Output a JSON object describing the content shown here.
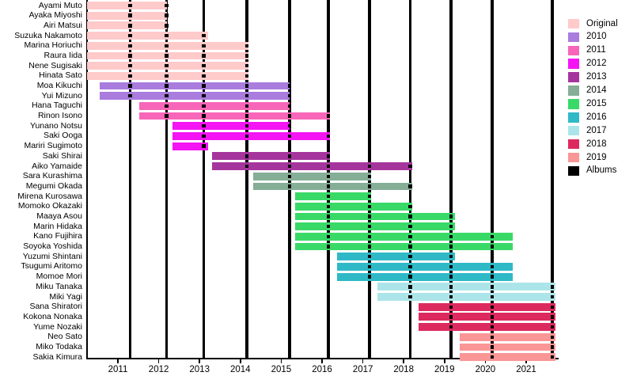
{
  "chart_data": {
    "type": "bar",
    "subtype": "gantt-timeline",
    "grid": false,
    "x_axis": {
      "min": 2010.25,
      "max": 2021.78,
      "tick_values": [
        2011,
        2012,
        2013,
        2014,
        2015,
        2016,
        2017,
        2018,
        2019,
        2020,
        2021
      ],
      "tick_labels": [
        "2011",
        "2012",
        "2013",
        "2014",
        "2015",
        "2016",
        "2017",
        "2018",
        "2019",
        "2020",
        "2021"
      ]
    },
    "legend": {
      "position": "right",
      "entries": [
        {
          "label": "Original",
          "color": "#FFCACA"
        },
        {
          "label": "2010",
          "color": "#A97CDE"
        },
        {
          "label": "2011",
          "color": "#F766B8"
        },
        {
          "label": "2012",
          "color": "#F414F4"
        },
        {
          "label": "2013",
          "color": "#A5359D"
        },
        {
          "label": "2014",
          "color": "#84AE96"
        },
        {
          "label": "2015",
          "color": "#39D967"
        },
        {
          "label": "2016",
          "color": "#2FB9C7"
        },
        {
          "label": "2017",
          "color": "#ACE5E9"
        },
        {
          "label": "2018",
          "color": "#DC2A5F"
        },
        {
          "label": "2019",
          "color": "#FA9696"
        },
        {
          "label": "Albums",
          "color": "#000000"
        }
      ]
    },
    "album_dates": [
      2011.3,
      2012.19,
      2013.1,
      2014.16,
      2015.2,
      2016.15,
      2017.16,
      2018.16,
      2019.16,
      2020.17,
      2021.64
    ],
    "members": [
      {
        "name": "Ayami Muto",
        "generation": "Original",
        "start": 2010.25,
        "end": 2012.2
      },
      {
        "name": "Ayaka Miyoshi",
        "generation": "Original",
        "start": 2010.25,
        "end": 2012.2
      },
      {
        "name": "Airi Matsui",
        "generation": "Original",
        "start": 2010.25,
        "end": 2012.2
      },
      {
        "name": "Suzuka Nakamoto",
        "generation": "Original",
        "start": 2010.25,
        "end": 2013.2
      },
      {
        "name": "Marina Horiuchi",
        "generation": "Original",
        "start": 2010.25,
        "end": 2014.2
      },
      {
        "name": "Raura Iida",
        "generation": "Original",
        "start": 2010.25,
        "end": 2014.2
      },
      {
        "name": "Nene Sugisaki",
        "generation": "Original",
        "start": 2010.25,
        "end": 2014.2
      },
      {
        "name": "Hinata Sato",
        "generation": "Original",
        "start": 2010.25,
        "end": 2014.2
      },
      {
        "name": "Moa Kikuchi",
        "generation": "2010",
        "start": 2010.55,
        "end": 2015.2
      },
      {
        "name": "Yui Mizuno",
        "generation": "2010",
        "start": 2010.55,
        "end": 2015.2
      },
      {
        "name": "Hana Taguchi",
        "generation": "2011",
        "start": 2011.53,
        "end": 2015.2
      },
      {
        "name": "Rinon Isono",
        "generation": "2011",
        "start": 2011.53,
        "end": 2016.2
      },
      {
        "name": "Yunano Notsu",
        "generation": "2012",
        "start": 2012.33,
        "end": 2015.2
      },
      {
        "name": "Saki Ooga",
        "generation": "2012",
        "start": 2012.33,
        "end": 2016.2
      },
      {
        "name": "Mariri Sugimoto",
        "generation": "2012",
        "start": 2012.33,
        "end": 2013.2
      },
      {
        "name": "Saki Shirai",
        "generation": "2013",
        "start": 2013.31,
        "end": 2016.2
      },
      {
        "name": "Aiko Yamaide",
        "generation": "2013",
        "start": 2013.31,
        "end": 2018.2
      },
      {
        "name": "Sara Kurashima",
        "generation": "2014",
        "start": 2014.31,
        "end": 2017.2
      },
      {
        "name": "Megumi Okada",
        "generation": "2014",
        "start": 2014.31,
        "end": 2018.2
      },
      {
        "name": "Mirena Kurosawa",
        "generation": "2015",
        "start": 2015.35,
        "end": 2017.2
      },
      {
        "name": "Momoko Okazaki",
        "generation": "2015",
        "start": 2015.35,
        "end": 2018.2
      },
      {
        "name": "Maaya Asou",
        "generation": "2015",
        "start": 2015.35,
        "end": 2019.25
      },
      {
        "name": "Marin Hidaka",
        "generation": "2015",
        "start": 2015.35,
        "end": 2019.25
      },
      {
        "name": "Kano Fujihira",
        "generation": "2015",
        "start": 2015.35,
        "end": 2020.67
      },
      {
        "name": "Soyoka Yoshida",
        "generation": "2015",
        "start": 2015.35,
        "end": 2020.67
      },
      {
        "name": "Yuzumi Shintani",
        "generation": "2016",
        "start": 2016.36,
        "end": 2019.25
      },
      {
        "name": "Tsugumi Aritomo",
        "generation": "2016",
        "start": 2016.36,
        "end": 2020.67
      },
      {
        "name": "Momoe Mori",
        "generation": "2016",
        "start": 2016.36,
        "end": 2020.67
      },
      {
        "name": "Miku Tanaka",
        "generation": "2017",
        "start": 2017.35,
        "end": 2021.72
      },
      {
        "name": "Miki Yagi",
        "generation": "2017",
        "start": 2017.35,
        "end": 2021.72
      },
      {
        "name": "Sana Shiratori",
        "generation": "2018",
        "start": 2018.37,
        "end": 2021.72
      },
      {
        "name": "Kokona Nonaka",
        "generation": "2018",
        "start": 2018.37,
        "end": 2021.72
      },
      {
        "name": "Yume Nozaki",
        "generation": "2018",
        "start": 2018.37,
        "end": 2021.72
      },
      {
        "name": "Neo Sato",
        "generation": "2019",
        "start": 2019.38,
        "end": 2021.72
      },
      {
        "name": "Miko Todaka",
        "generation": "2019",
        "start": 2019.38,
        "end": 2021.72
      },
      {
        "name": "Sakia Kimura",
        "generation": "2019",
        "start": 2019.38,
        "end": 2021.72
      }
    ]
  }
}
